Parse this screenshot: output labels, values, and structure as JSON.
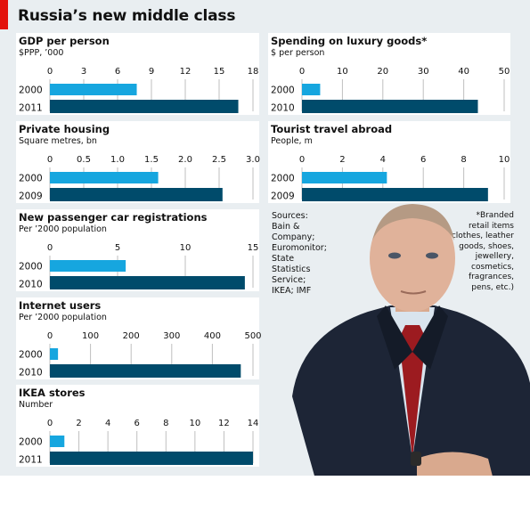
{
  "header": {
    "title": "Russia’s new middle class"
  },
  "colors": {
    "accent": "#e3120b",
    "bar_2000": "#16a6df",
    "bar_recent": "#004b6b",
    "grid": "#bfbfbf"
  },
  "notes": {
    "sources": "Sources:\nBain &\nCompany;\nEuromonitor;\nState\nStatistics\nService;\nIKEA; IMF",
    "footnote": "*Branded\nretail items\n(clothes, leather\ngoods, shoes,\njewellery,\ncosmetics,\nfragrances,\npens, etc.)"
  },
  "chart_data": [
    {
      "type": "bar",
      "title": "GDP per person",
      "subtitle": "$PPP, ’000",
      "categories": [
        "2000",
        "2011"
      ],
      "values": [
        7.7,
        16.7
      ],
      "ticks": [
        "0",
        "3",
        "6",
        "9",
        "12",
        "15",
        "18"
      ],
      "xlim": [
        0,
        18
      ]
    },
    {
      "type": "bar",
      "title": "Spending on luxury goods*",
      "subtitle": "$ per person",
      "categories": [
        "2000",
        "2010"
      ],
      "values": [
        4.5,
        43.5
      ],
      "ticks": [
        "0",
        "10",
        "20",
        "30",
        "40",
        "50"
      ],
      "xlim": [
        0,
        50
      ]
    },
    {
      "type": "bar",
      "title": "Private housing",
      "subtitle": "Square metres, bn",
      "categories": [
        "2000",
        "2009"
      ],
      "values": [
        1.6,
        2.55
      ],
      "ticks": [
        "0",
        "0.5",
        "1.0",
        "1.5",
        "2.0",
        "2.5",
        "3.0"
      ],
      "xlim": [
        0,
        3
      ]
    },
    {
      "type": "bar",
      "title": "Tourist travel abroad",
      "subtitle": "People, m",
      "categories": [
        "2000",
        "2009"
      ],
      "values": [
        4.2,
        9.2
      ],
      "ticks": [
        "0",
        "2",
        "4",
        "6",
        "8",
        "10"
      ],
      "xlim": [
        0,
        10
      ]
    },
    {
      "type": "bar",
      "title": "New passenger car registrations",
      "subtitle": "Per ’2000 population",
      "categories": [
        "2000",
        "2010"
      ],
      "values": [
        5.6,
        14.4
      ],
      "ticks": [
        "0",
        "5",
        "10",
        "15"
      ],
      "xlim": [
        0,
        15
      ]
    },
    {
      "type": "bar",
      "title": "Internet users",
      "subtitle": "Per ’2000 population",
      "categories": [
        "2000",
        "2010"
      ],
      "values": [
        20,
        470
      ],
      "ticks": [
        "0",
        "100",
        "200",
        "300",
        "400",
        "500"
      ],
      "xlim": [
        0,
        500
      ]
    },
    {
      "type": "bar",
      "title": "IKEA stores",
      "subtitle": "Number",
      "categories": [
        "2000",
        "2011"
      ],
      "values": [
        1,
        14
      ],
      "ticks": [
        "0",
        "2",
        "4",
        "6",
        "8",
        "10",
        "12",
        "14"
      ],
      "xlim": [
        0,
        14
      ]
    }
  ]
}
